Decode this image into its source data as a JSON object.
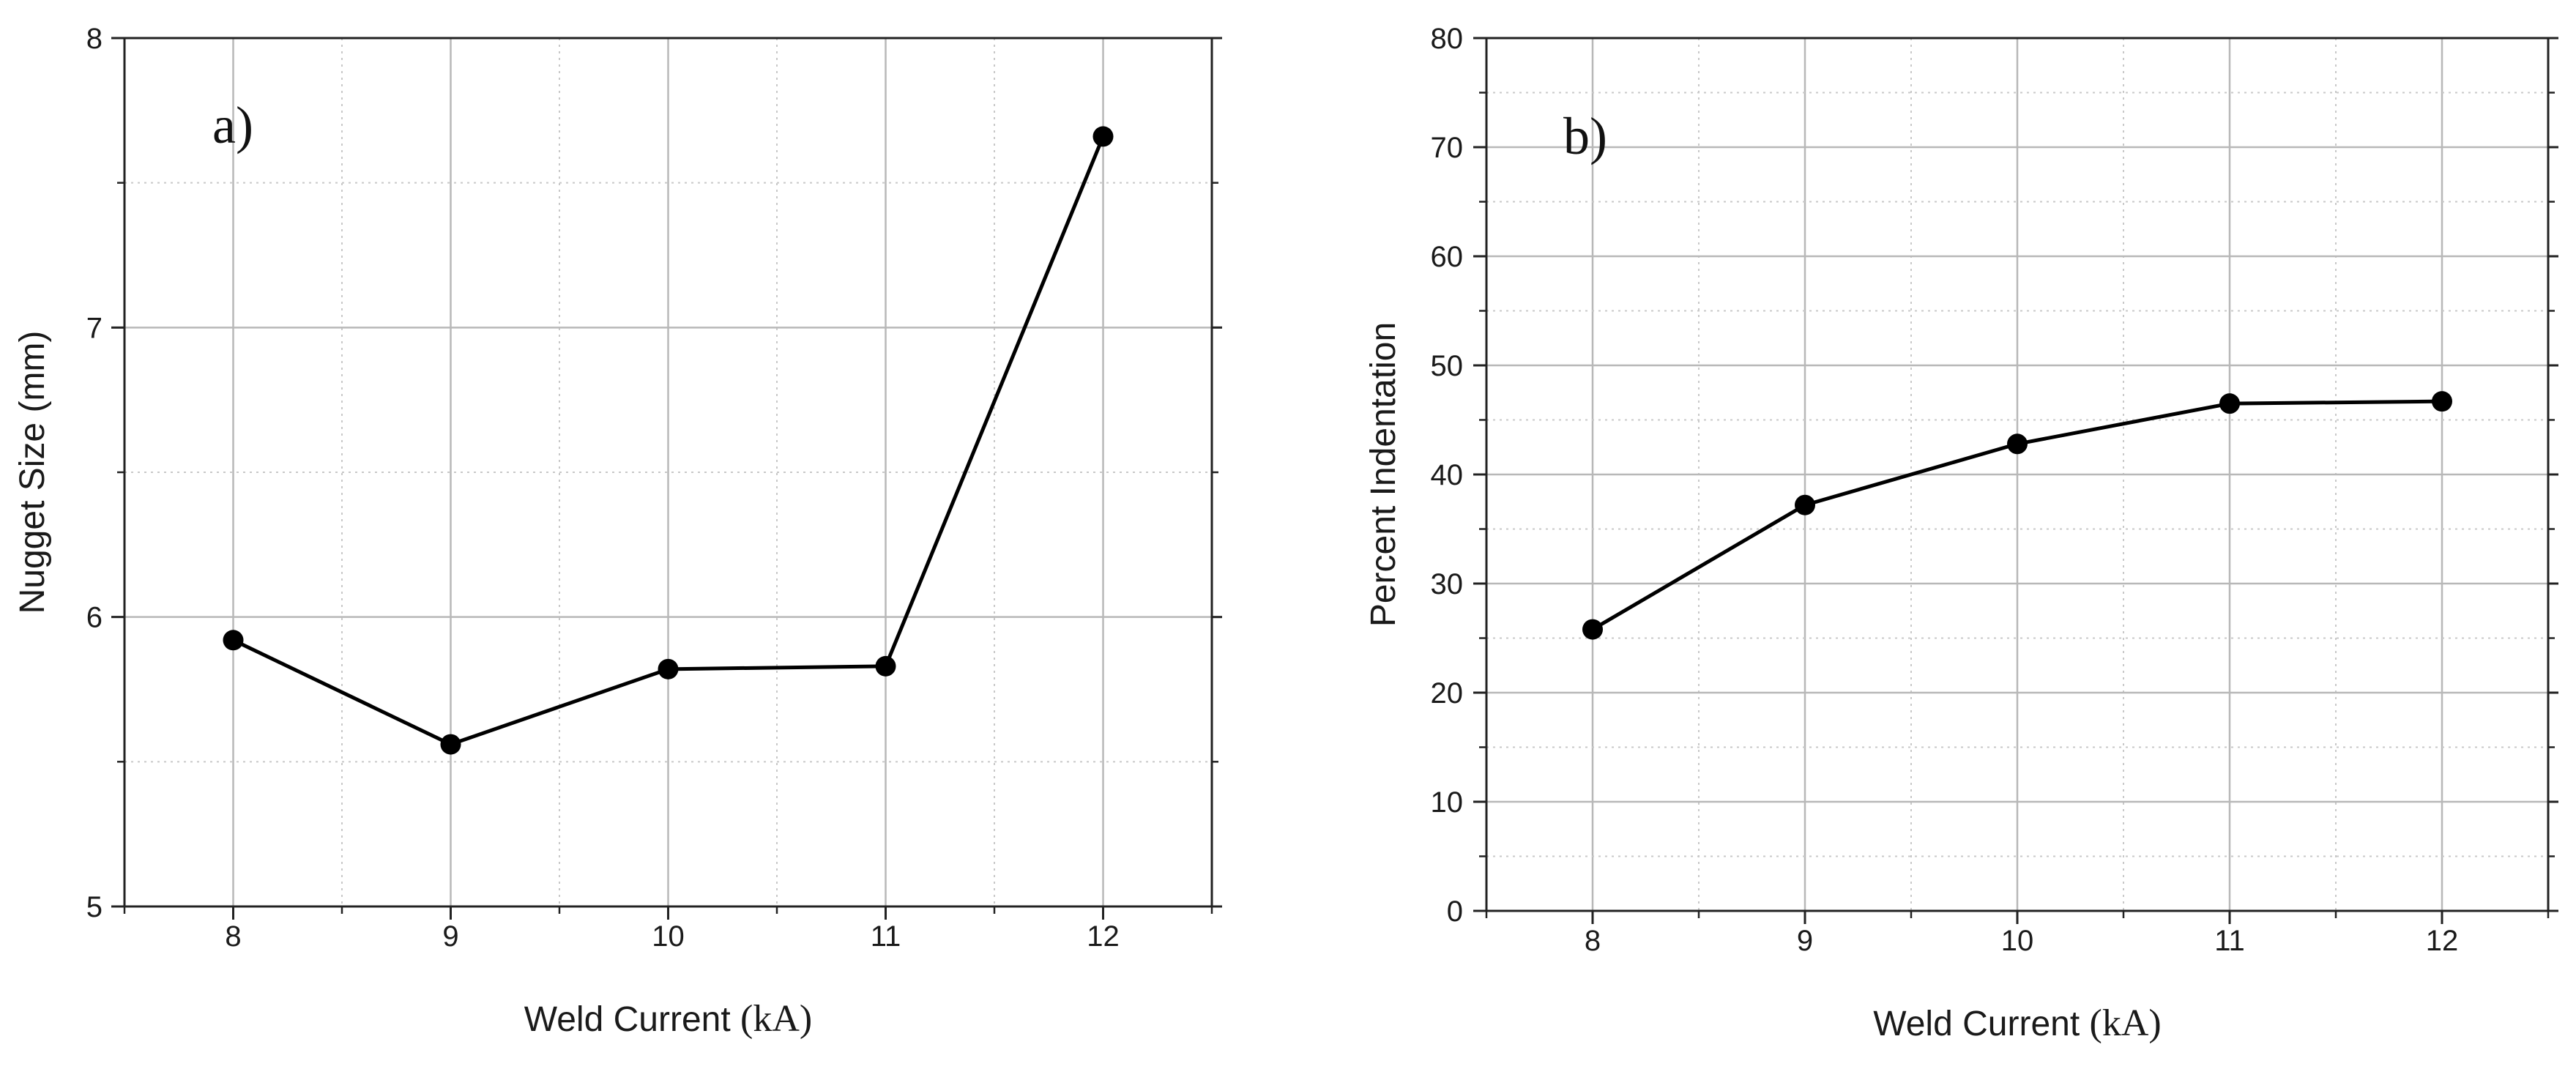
{
  "chart_data": [
    {
      "type": "line",
      "panel_label": "a)",
      "xlabel": {
        "sans": "Weld Current ",
        "serif": "(kA)"
      },
      "ylabel": "Nugget Size (mm)",
      "x": [
        8,
        9,
        10,
        11,
        12
      ],
      "series": [
        {
          "values": [
            5.92,
            5.56,
            5.82,
            5.83,
            7.66
          ]
        }
      ],
      "xlim": [
        7.5,
        12.5
      ],
      "ylim": [
        5,
        8
      ],
      "xticks": [
        8,
        9,
        10,
        11,
        12
      ],
      "yticks": [
        5,
        6,
        7,
        8
      ],
      "xtick_labels": [
        "8",
        "9",
        "10",
        "11",
        "12"
      ],
      "ytick_labels": [
        "5",
        "6",
        "7",
        "8"
      ],
      "grid": true,
      "legend": "none"
    },
    {
      "type": "line",
      "panel_label": "b)",
      "xlabel": {
        "sans": "Weld Current ",
        "serif": "(kA)"
      },
      "ylabel": "Percent Indentation",
      "x": [
        8,
        9,
        10,
        11,
        12
      ],
      "series": [
        {
          "values": [
            25.8,
            37.2,
            42.8,
            46.5,
            46.7
          ]
        }
      ],
      "xlim": [
        7.5,
        12.5
      ],
      "ylim": [
        0,
        80
      ],
      "xticks": [
        8,
        9,
        10,
        11,
        12
      ],
      "yticks": [
        0,
        10,
        20,
        30,
        40,
        50,
        60,
        70,
        80
      ],
      "xtick_labels": [
        "8",
        "9",
        "10",
        "11",
        "12"
      ],
      "ytick_labels": [
        "0",
        "10",
        "20",
        "30",
        "40",
        "50",
        "60",
        "70",
        "80"
      ],
      "grid": true,
      "legend": "none"
    }
  ]
}
